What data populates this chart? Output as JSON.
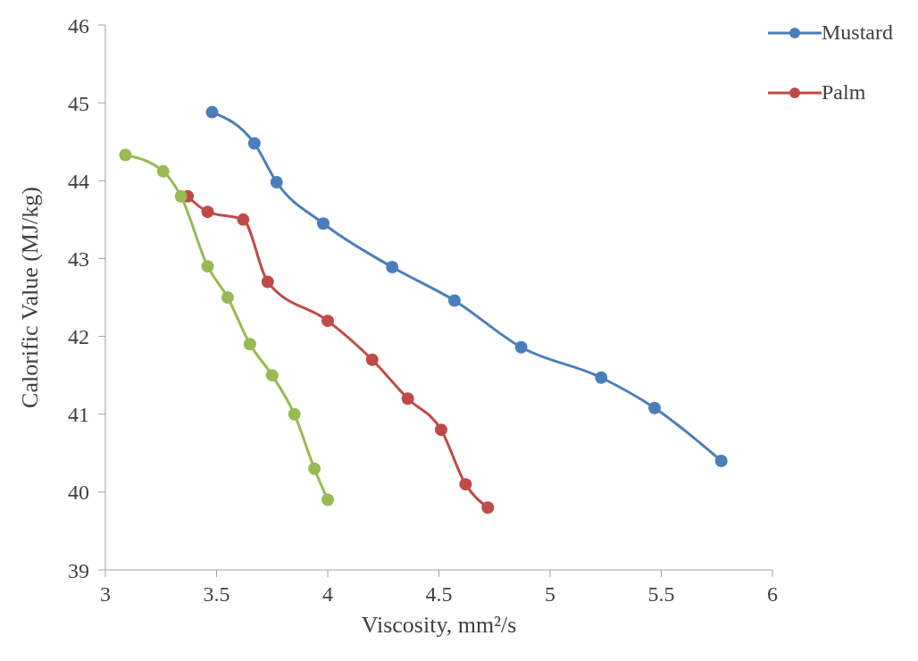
{
  "chart_data": {
    "type": "line",
    "xlabel": "Viscosity, mm²/s",
    "ylabel": "Calorific Value (MJ/kg)",
    "xlim": [
      3,
      6
    ],
    "xticks": [
      3,
      3.5,
      4,
      4.5,
      5,
      5.5,
      6
    ],
    "ylim": [
      39,
      46
    ],
    "yticks": [
      39,
      40,
      41,
      42,
      43,
      44,
      45,
      46
    ],
    "grid": false,
    "legend": "top right",
    "marker": "circle",
    "line_style": "solid",
    "series": [
      {
        "name": "Mustard",
        "color": "#4a7ebb",
        "x": [
          3.48,
          3.67,
          3.77,
          3.98,
          4.29,
          4.57,
          4.87,
          5.23,
          5.47,
          5.77
        ],
        "values": [
          44.88,
          44.48,
          43.98,
          43.45,
          42.89,
          42.46,
          41.86,
          41.47,
          41.08,
          40.4
        ]
      },
      {
        "name": "Palm",
        "color": "#be4b48",
        "x": [
          3.37,
          3.46,
          3.62,
          3.73,
          4.0,
          4.2,
          4.36,
          4.51,
          4.62,
          4.72
        ],
        "values": [
          43.8,
          43.6,
          43.5,
          42.7,
          42.2,
          41.7,
          41.2,
          40.8,
          40.1,
          39.8
        ]
      },
      {
        "color": "#98b954",
        "x": [
          3.09,
          3.26,
          3.34,
          3.46,
          3.55,
          3.65,
          3.75,
          3.85,
          3.94,
          4.0
        ],
        "values": [
          44.33,
          44.12,
          43.8,
          42.9,
          42.5,
          41.9,
          41.5,
          41.0,
          40.3,
          39.9
        ]
      }
    ]
  }
}
